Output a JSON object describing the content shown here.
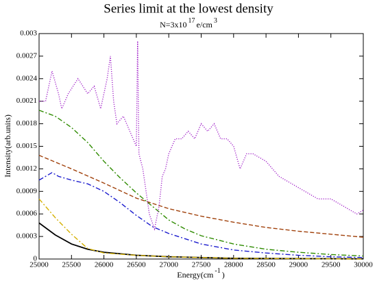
{
  "chart_data": {
    "type": "line",
    "title": "Series limit at the lowest density",
    "subtitle_parts": [
      "N=3x10",
      "17",
      "e/cm",
      "3"
    ],
    "x_label_parts": [
      "Energy(cm",
      "-1",
      ")"
    ],
    "y_label": "Intensity(arb.units)",
    "xlim": [
      25000,
      30000
    ],
    "xticks": [
      25000,
      25500,
      26000,
      26500,
      27000,
      27500,
      28000,
      28500,
      29000,
      29500,
      30000
    ],
    "ylim": [
      0,
      0.003
    ],
    "yticks": [
      0,
      0.0003,
      0.0006,
      0.0009,
      0.0012,
      0.0015,
      0.0018,
      0.0021,
      0.0024,
      0.0027,
      0.003
    ],
    "series": [
      {
        "color": "#000000",
        "dash": "solid",
        "x": [
          25000,
          25250,
          25500,
          25750,
          26000,
          26500,
          27000,
          28000,
          29000,
          30000
        ],
        "values": [
          0.00048,
          0.00032,
          0.0002,
          0.00013,
          9e-05,
          5e-05,
          3e-05,
          1e-05,
          5e-06,
          2e-06
        ]
      },
      {
        "color": "#d4b000",
        "dash": "dashdot",
        "x": [
          25000,
          25250,
          25500,
          25750,
          26000,
          26500,
          27000,
          28000,
          30000
        ],
        "values": [
          0.0008,
          0.00055,
          0.00033,
          0.00014,
          8e-05,
          5e-05,
          3e-05,
          1e-05,
          0
        ]
      },
      {
        "color": "#2e8b00",
        "dash": "dashdot",
        "x": [
          25000,
          25250,
          25500,
          25750,
          26000,
          26250,
          26500,
          26750,
          27000,
          27250,
          27500,
          28000,
          28500,
          29000,
          29500,
          30000
        ],
        "values": [
          0.00198,
          0.0019,
          0.00175,
          0.00155,
          0.0013,
          0.00108,
          0.00088,
          0.0007,
          0.00052,
          0.0004,
          0.00031,
          0.0002,
          0.00013,
          9e-05,
          6e-05,
          4e-05
        ]
      },
      {
        "color": "#a0400a",
        "dash": "dashed",
        "x": [
          25000,
          25500,
          26000,
          26500,
          27000,
          27500,
          28000,
          28500,
          29000,
          29500,
          30000
        ],
        "values": [
          0.00138,
          0.0012,
          0.00101,
          0.00081,
          0.00067,
          0.00057,
          0.00049,
          0.00042,
          0.00037,
          0.00033,
          0.00029
        ]
      },
      {
        "color": "#1a1acd",
        "dash": "dashdot",
        "x": [
          25000,
          25100,
          25200,
          25300,
          25500,
          25750,
          26000,
          26250,
          26500,
          26750,
          27000,
          27500,
          28000,
          28500,
          29000,
          29500,
          30000
        ],
        "values": [
          0.00105,
          0.0011,
          0.00115,
          0.0011,
          0.00105,
          0.001,
          0.0009,
          0.00075,
          0.00058,
          0.00043,
          0.00034,
          0.0002,
          0.00012,
          8e-05,
          5e-05,
          3e-05,
          2e-05
        ]
      },
      {
        "color": "#a020c8",
        "dash": "dotted",
        "x": [
          25000,
          25100,
          25200,
          25300,
          25350,
          25450,
          25600,
          25750,
          25850,
          25950,
          26050,
          26100,
          26150,
          26200,
          26300,
          26400,
          26500,
          26520,
          26540,
          26600,
          26650,
          26700,
          26780,
          26850,
          26900,
          26950,
          27000,
          27100,
          27200,
          27300,
          27400,
          27500,
          27600,
          27700,
          27800,
          27900,
          28000,
          28100,
          28200,
          28300,
          28500,
          28700,
          28900,
          29100,
          29300,
          29500,
          29700,
          29900,
          30000
        ],
        "values": [
          0.0021,
          0.0021,
          0.0025,
          0.0022,
          0.002,
          0.0022,
          0.0024,
          0.0022,
          0.0023,
          0.002,
          0.0024,
          0.0027,
          0.0021,
          0.0018,
          0.0019,
          0.0017,
          0.0015,
          0.0029,
          0.0014,
          0.0012,
          0.0009,
          0.0006,
          0.0004,
          0.0007,
          0.0011,
          0.0012,
          0.0014,
          0.0016,
          0.0016,
          0.0017,
          0.0016,
          0.0018,
          0.0017,
          0.0018,
          0.0016,
          0.0016,
          0.0015,
          0.0012,
          0.0014,
          0.0014,
          0.0013,
          0.0011,
          0.001,
          0.0009,
          0.0008,
          0.0008,
          0.0007,
          0.0006,
          0.00065
        ]
      }
    ]
  }
}
